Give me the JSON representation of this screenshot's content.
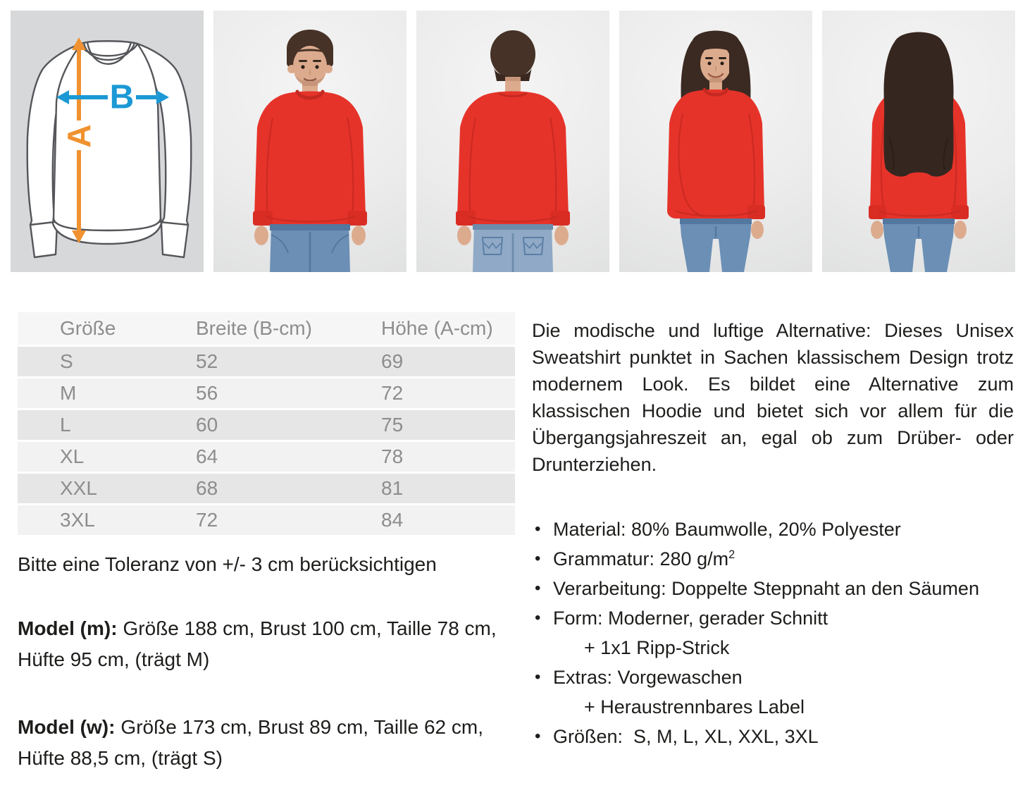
{
  "colors": {
    "sweatshirt_red": "#e6332a",
    "arrow_a_orange": "#f0922f",
    "arrow_b_blue": "#1b99d5",
    "table_text_gray": "#8d8d8d",
    "body_text": "#1d1d1b"
  },
  "diagram": {
    "label_a": "A",
    "label_b": "B"
  },
  "table": {
    "headers": [
      "Größe",
      "Breite (B-cm)",
      "Höhe (A-cm)"
    ],
    "rows": [
      [
        "S",
        "52",
        "69"
      ],
      [
        "M",
        "56",
        "72"
      ],
      [
        "L",
        "60",
        "75"
      ],
      [
        "XL",
        "64",
        "78"
      ],
      [
        "XXL",
        "68",
        "81"
      ],
      [
        "3XL",
        "72",
        "84"
      ]
    ]
  },
  "tolerance": "Bitte eine Toleranz von +/- 3 cm berücksichtigen",
  "model_m": {
    "label": "Model (m):",
    "text": "Größe 188 cm, Brust 100 cm, Taille 78 cm, Hüfte 95 cm, (trägt M)"
  },
  "model_w": {
    "label": "Model (w):",
    "text": "Größe 173 cm, Brust 89 cm, Taille 62 cm, Hüfte 88,5 cm, (trägt S)"
  },
  "description": "Die modische und luftige Alternative: Dieses Unisex Sweatshirt punktet in Sachen klassischem Design trotz modernem Look. Es bildet eine Alternative zum klassischen Hoodie und bietet sich vor allem für die Übergangsjahreszeit an, egal ob zum Drüber- oder Drunterziehen.",
  "features": [
    {
      "dot": "•",
      "text": "Material: 80% Baumwolle, 20% Polyester"
    },
    {
      "dot": "•",
      "text": "Grammatur: 280 g/m",
      "sup": "2"
    },
    {
      "dot": "•",
      "text": "Verarbeitung: Doppelte Steppnaht an den Säumen"
    },
    {
      "dot": "•",
      "text": "Form: Moderner, gerader Schnitt"
    },
    {
      "dot": "",
      "text": "+ 1x1 Ripp-Strick"
    },
    {
      "dot": "•",
      "text": "Extras: Vorgewaschen"
    },
    {
      "dot": "",
      "text": "+ Heraustrennbares Label"
    },
    {
      "dot": "•",
      "text": "Größen:  S, M, L, XL, XXL, 3XL"
    }
  ]
}
